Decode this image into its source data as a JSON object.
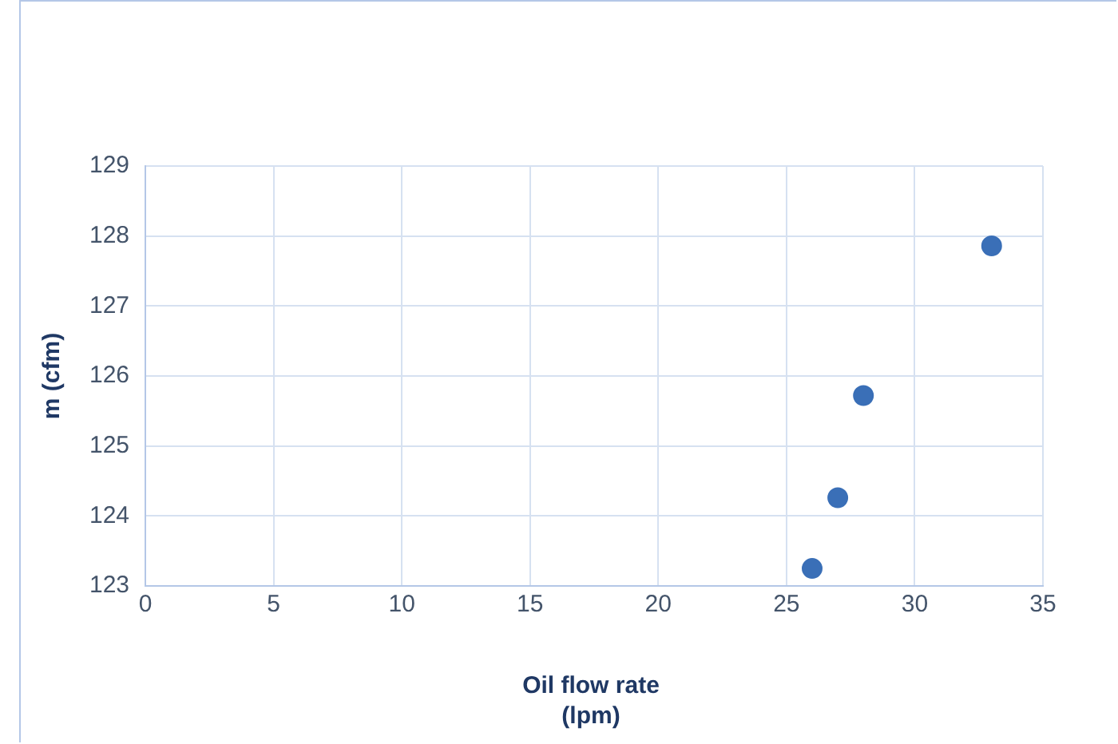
{
  "chart_data": {
    "type": "scatter",
    "xlabel": "Oil flow rate (lpm)",
    "ylabel": "m (cfm)",
    "x": [
      26,
      27,
      28,
      33
    ],
    "series": [
      {
        "color": "#3a6fb7",
        "values": [
          123.25,
          124.26,
          125.72,
          127.86
        ]
      }
    ],
    "xlim": [
      0,
      35
    ],
    "xticks": [
      0,
      5,
      10,
      15,
      20,
      25,
      30,
      35
    ],
    "ylim": [
      123,
      129
    ],
    "yticks": [
      123,
      124,
      125,
      126,
      127,
      128,
      129
    ],
    "grid": true,
    "legend": false,
    "marker": "circle"
  }
}
